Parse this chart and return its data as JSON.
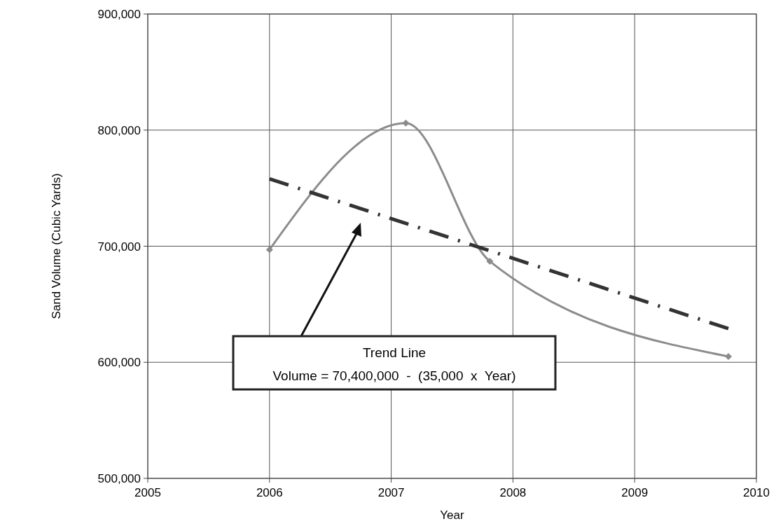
{
  "chart_data": {
    "type": "line",
    "xlabel": "Year",
    "ylabel": "Sand Volume (Cubic Yards)",
    "xlim": [
      2005,
      2010
    ],
    "xticks": [
      2005,
      2006,
      2007,
      2008,
      2009,
      2010
    ],
    "ylim": [
      500000,
      900000
    ],
    "yticks": [
      {
        "value": 500000,
        "label": "500,000"
      },
      {
        "value": 600000,
        "label": "600,000"
      },
      {
        "value": 700000,
        "label": "700,000"
      },
      {
        "value": 800000,
        "label": "800,000"
      },
      {
        "value": 900000,
        "label": "900,000"
      }
    ],
    "grid": true,
    "series": [
      {
        "color": "#8c8c8c",
        "marker": "diamond",
        "line_style": "solid",
        "x": [
          2006.0,
          2007.12,
          2007.81,
          2009.77
        ],
        "values": [
          697000,
          806000,
          687000,
          605000
        ]
      },
      {
        "color": "#333333",
        "marker": "none",
        "line_style": "dashed",
        "x": [
          2006.0,
          2009.77
        ],
        "values": [
          758000,
          629000
        ]
      }
    ],
    "annotations": [
      "Trend Line\nVolume = 70,400,000  -  (35,000  x  Year)"
    ]
  }
}
